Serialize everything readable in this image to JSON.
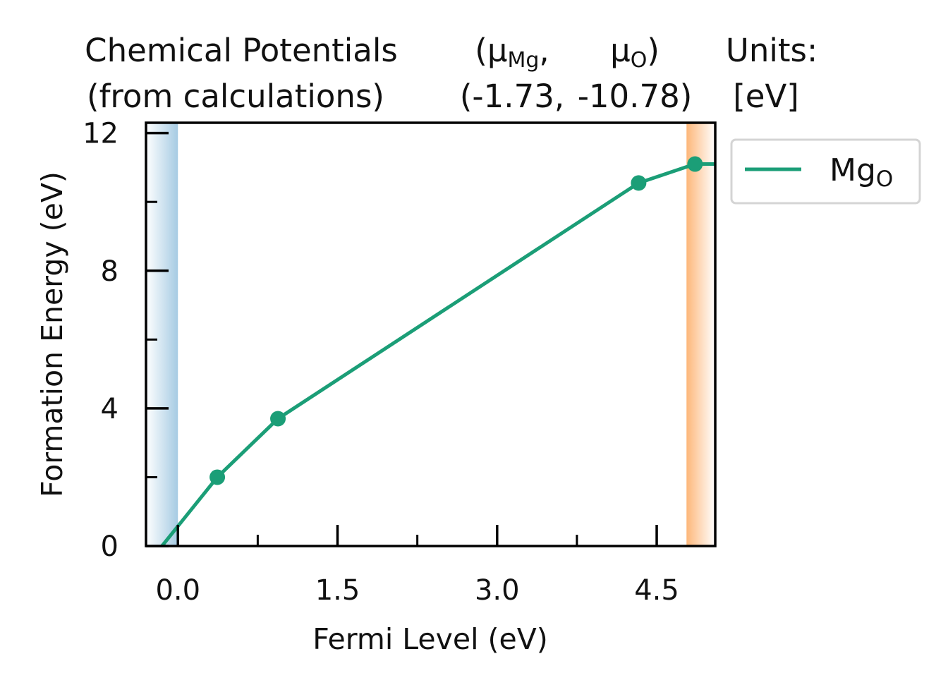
{
  "chart_data": {
    "type": "line",
    "title": {
      "col1": [
        "Chemical Potentials",
        "(from calculations)"
      ],
      "col2_line1": [
        "(μ",
        "Mg",
        ","
      ],
      "col2_line2": "(-1.73,",
      "col3_line1": [
        "μ",
        "O",
        ")"
      ],
      "col3_line2": "-10.78)",
      "col4": [
        "Units:",
        "[eV]"
      ]
    },
    "xlabel": "Fermi Level (eV)",
    "ylabel": "Formation Energy (eV)",
    "xlim": [
      -0.3,
      5.05
    ],
    "ylim": [
      0,
      12.3
    ],
    "xticks": [
      0.0,
      1.5,
      3.0,
      4.5
    ],
    "xtick_labels": [
      "0.0",
      "1.5",
      "3.0",
      "4.5"
    ],
    "xminor": [
      0.75,
      2.25,
      3.75
    ],
    "yticks": [
      0,
      4,
      8,
      12
    ],
    "ytick_labels": [
      "0",
      "4",
      "8",
      "12"
    ],
    "yminor": [
      2,
      6,
      10
    ],
    "vbm_region": [
      -0.3,
      0.0
    ],
    "cbm_region": [
      4.78,
      5.05
    ],
    "series": [
      {
        "name": [
          "Mg",
          "O"
        ],
        "color": "#1b9e77",
        "line": [
          [
            -0.15,
            0.0
          ],
          [
            0.37,
            2.0
          ],
          [
            0.94,
            3.7
          ],
          [
            4.33,
            10.55
          ],
          [
            4.86,
            11.1
          ],
          [
            5.05,
            11.1
          ]
        ],
        "markers": [
          [
            0.37,
            2.0
          ],
          [
            0.94,
            3.7
          ],
          [
            4.33,
            10.55
          ],
          [
            4.86,
            11.1
          ]
        ]
      }
    ],
    "legend": "upper-right-outside",
    "colors": {
      "vbm": "#a6cbe3",
      "cbm": "#fdb77a",
      "axes": "#000000"
    }
  }
}
